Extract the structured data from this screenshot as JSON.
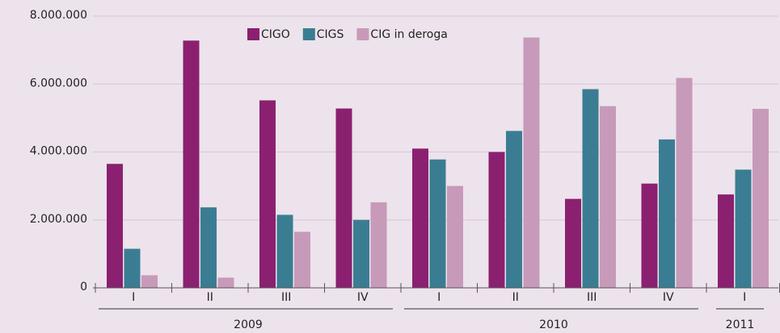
{
  "chart_data": {
    "type": "bar",
    "groups": [
      {
        "name": "2009",
        "categories": [
          "I",
          "II",
          "III",
          "IV"
        ]
      },
      {
        "name": "2010",
        "categories": [
          "I",
          "II",
          "III",
          "IV"
        ]
      },
      {
        "name": "2011",
        "categories": [
          "I"
        ]
      }
    ],
    "series": [
      {
        "name": "CIGO",
        "color": "#8b2070",
        "values": [
          3650000,
          7280000,
          5520000,
          5280000,
          4100000,
          4000000,
          2620000,
          3070000,
          2750000
        ]
      },
      {
        "name": "CIGS",
        "color": "#3a7d92",
        "values": [
          1150000,
          2370000,
          2150000,
          2000000,
          3780000,
          4620000,
          5850000,
          4370000,
          3480000
        ]
      },
      {
        "name": "CIG in deroga",
        "color": "#c79ab9",
        "values": [
          370000,
          300000,
          1650000,
          2520000,
          3000000,
          7370000,
          5350000,
          6180000,
          5270000
        ]
      }
    ],
    "ylim": [
      0,
      8000000
    ],
    "yticks": [
      {
        "value": 0,
        "label": "0"
      },
      {
        "value": 2000000,
        "label": "2.000.000"
      },
      {
        "value": 4000000,
        "label": "4.000.000"
      },
      {
        "value": 6000000,
        "label": "6.000.000"
      },
      {
        "value": 8000000,
        "label": "8.000.000"
      }
    ],
    "legend": "top"
  }
}
